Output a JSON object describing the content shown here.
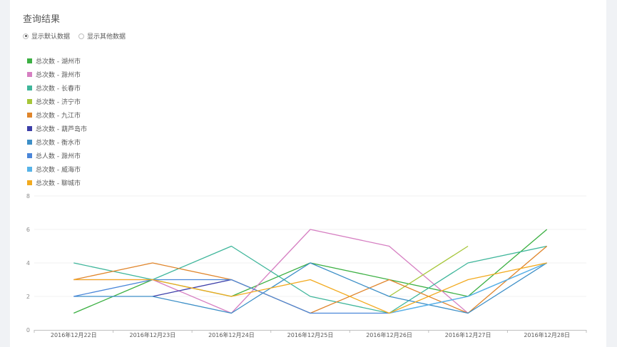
{
  "panel": {
    "title": "查询结果"
  },
  "radio_options": [
    {
      "label": "显示默认数据",
      "checked": true
    },
    {
      "label": "显示其他数据",
      "checked": false
    }
  ],
  "chart_data": {
    "type": "line",
    "title": "",
    "xlabel": "",
    "ylabel": "",
    "ylim": [
      0,
      8
    ],
    "y_ticks": [
      0,
      2,
      4,
      6,
      8
    ],
    "grid": true,
    "legend_position": "top-left",
    "categories": [
      "2016年12月22日",
      "2016年12月23日",
      "2016年12月24日",
      "2016年12月25日",
      "2016年12月26日",
      "2016年12月27日",
      "2016年12月28日"
    ],
    "series": [
      {
        "name": "总次数 - 湖州市",
        "color": "#3cb043",
        "values": [
          1,
          3,
          2,
          4,
          3,
          2,
          6
        ]
      },
      {
        "name": "总次数 - 滁州市",
        "color": "#d67fc2",
        "values": [
          3,
          3,
          1,
          6,
          5,
          1,
          null
        ]
      },
      {
        "name": "总次数 - 长春市",
        "color": "#3fb69b",
        "values": [
          4,
          3,
          5,
          2,
          1,
          4,
          5
        ]
      },
      {
        "name": "总次数 - 济宁市",
        "color": "#a6c639",
        "values": [
          null,
          null,
          null,
          null,
          2,
          5,
          null
        ]
      },
      {
        "name": "总次数 - 九江市",
        "color": "#e0852b",
        "values": [
          3,
          4,
          3,
          1,
          3,
          1,
          5
        ]
      },
      {
        "name": "总次数 - 葫芦岛市",
        "color": "#3c3ea8",
        "values": [
          null,
          2,
          3,
          null,
          null,
          null,
          null
        ]
      },
      {
        "name": "总次数 - 衡水市",
        "color": "#3d8fc7",
        "values": [
          2,
          2,
          1,
          4,
          2,
          1,
          4
        ]
      },
      {
        "name": "总人数 - 滁州市",
        "color": "#4a86d9",
        "values": [
          2,
          3,
          3,
          1,
          1,
          2,
          4
        ]
      },
      {
        "name": "总次数 - 威海市",
        "color": "#56b3e8",
        "values": [
          null,
          null,
          null,
          null,
          1,
          2,
          4
        ]
      },
      {
        "name": "总次数 - 聊城市",
        "color": "#f2aa1f",
        "values": [
          3,
          3,
          2,
          3,
          1,
          3,
          4
        ]
      }
    ]
  }
}
